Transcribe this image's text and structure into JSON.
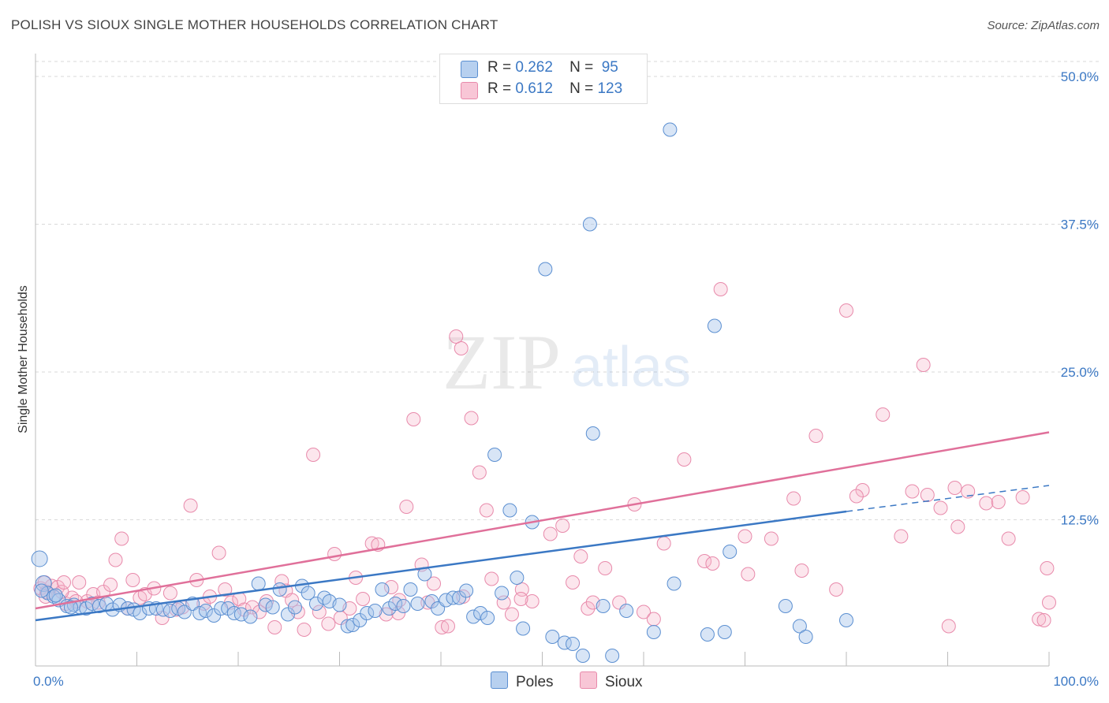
{
  "title": "POLISH VS SIOUX SINGLE MOTHER HOUSEHOLDS CORRELATION CHART",
  "source": "Source: ZipAtlas.com",
  "colors": {
    "blue": "#3b78c4",
    "blue_fill": "#a9c6ea",
    "pink": "#e0709a",
    "pink_fill": "#f5b7cb",
    "tick_text": "#3b78c4",
    "grid": "#d9d9d9"
  },
  "legend": {
    "r_label": "R =",
    "n_label": "N =",
    "poles": {
      "r": "0.262",
      "n": "95"
    },
    "sioux": {
      "r": "0.612",
      "n": "123"
    }
  },
  "chart_data": {
    "type": "scatter",
    "title": "POLISH VS SIOUX SINGLE MOTHER HOUSEHOLDS CORRELATION CHART",
    "xlabel": "",
    "ylabel": "Single Mother Households",
    "xlim": [
      0,
      100
    ],
    "ylim": [
      0,
      50
    ],
    "x_tick_labels": [
      "0.0%",
      "100.0%"
    ],
    "y_tick_labels": [
      "12.5%",
      "25.0%",
      "37.5%",
      "50.0%"
    ],
    "y_ticks": [
      12.5,
      25.0,
      37.5,
      50.0
    ],
    "grid": true,
    "watermark": "ZIPatlas",
    "series": [
      {
        "name": "Poles",
        "color": "#3b78c4",
        "trend": {
          "x0": 0,
          "y0": 4.0,
          "x1": 80,
          "y1": 13.2,
          "dash_to_x": 100,
          "dash_to_y": 15.4
        },
        "points": [
          [
            0.4,
            9.2
          ],
          [
            0.8,
            7.1
          ],
          [
            1.2,
            6.3
          ],
          [
            1.8,
            6.0
          ],
          [
            2.3,
            5.7
          ],
          [
            3.1,
            5.2
          ],
          [
            3.8,
            5.3
          ],
          [
            4.4,
            5.1
          ],
          [
            5.0,
            5.0
          ],
          [
            5.6,
            5.4
          ],
          [
            6.3,
            5.2
          ],
          [
            7.0,
            5.4
          ],
          [
            7.6,
            4.9
          ],
          [
            8.3,
            5.3
          ],
          [
            9.1,
            5.0
          ],
          [
            9.7,
            4.9
          ],
          [
            10.3,
            4.6
          ],
          [
            11.2,
            5.0
          ],
          [
            11.9,
            5.0
          ],
          [
            12.6,
            4.9
          ],
          [
            13.3,
            4.8
          ],
          [
            14.1,
            5.0
          ],
          [
            14.7,
            4.7
          ],
          [
            15.5,
            5.4
          ],
          [
            16.2,
            4.6
          ],
          [
            16.8,
            4.8
          ],
          [
            17.6,
            4.4
          ],
          [
            18.3,
            5.0
          ],
          [
            19.0,
            5.0
          ],
          [
            19.6,
            4.6
          ],
          [
            20.3,
            4.5
          ],
          [
            21.2,
            4.3
          ],
          [
            22.0,
            7.1
          ],
          [
            22.7,
            5.3
          ],
          [
            23.4,
            5.1
          ],
          [
            24.1,
            6.6
          ],
          [
            24.9,
            4.5
          ],
          [
            25.6,
            5.1
          ],
          [
            26.3,
            6.9
          ],
          [
            26.9,
            6.3
          ],
          [
            27.7,
            5.4
          ],
          [
            28.5,
            5.9
          ],
          [
            29.0,
            5.6
          ],
          [
            30.0,
            5.3
          ],
          [
            30.8,
            3.5
          ],
          [
            31.3,
            3.6
          ],
          [
            32.0,
            4.0
          ],
          [
            32.7,
            4.6
          ],
          [
            33.5,
            4.8
          ],
          [
            34.2,
            6.6
          ],
          [
            34.9,
            5.0
          ],
          [
            35.5,
            5.4
          ],
          [
            36.3,
            5.2
          ],
          [
            37.0,
            6.6
          ],
          [
            37.7,
            5.4
          ],
          [
            38.4,
            7.9
          ],
          [
            39.1,
            5.6
          ],
          [
            39.7,
            5.0
          ],
          [
            40.5,
            5.7
          ],
          [
            41.2,
            5.9
          ],
          [
            41.8,
            5.9
          ],
          [
            42.5,
            6.5
          ],
          [
            43.2,
            4.3
          ],
          [
            43.9,
            4.6
          ],
          [
            44.6,
            4.2
          ],
          [
            45.3,
            18.0
          ],
          [
            46.0,
            6.3
          ],
          [
            46.8,
            13.3
          ],
          [
            47.5,
            7.6
          ],
          [
            48.1,
            3.3
          ],
          [
            49.0,
            12.3
          ],
          [
            50.3,
            33.7
          ],
          [
            51.0,
            2.6
          ],
          [
            52.2,
            2.1
          ],
          [
            53.0,
            2.0
          ],
          [
            54.0,
            1.0
          ],
          [
            54.7,
            37.5
          ],
          [
            55.0,
            19.8
          ],
          [
            56.0,
            5.2
          ],
          [
            56.9,
            1.0
          ],
          [
            58.3,
            4.8
          ],
          [
            61.0,
            3.0
          ],
          [
            62.6,
            45.5
          ],
          [
            63.0,
            7.1
          ],
          [
            66.3,
            2.8
          ],
          [
            67.0,
            28.9
          ],
          [
            68.0,
            3.0
          ],
          [
            68.5,
            9.8
          ],
          [
            75.4,
            3.5
          ],
          [
            74.0,
            5.2
          ],
          [
            76.0,
            2.6
          ],
          [
            80.0,
            4.0
          ],
          [
            0.6,
            6.5
          ],
          [
            2.0,
            6.1
          ],
          [
            3.5,
            5.1
          ]
        ]
      },
      {
        "name": "Sioux",
        "color": "#e0709a",
        "trend": {
          "x0": 0,
          "y0": 5.0,
          "x1": 100,
          "y1": 19.9
        },
        "points": [
          [
            0.5,
            6.7
          ],
          [
            1.1,
            6.4
          ],
          [
            1.6,
            6.9
          ],
          [
            2.2,
            6.8
          ],
          [
            3.0,
            5.4
          ],
          [
            3.6,
            5.9
          ],
          [
            4.3,
            7.2
          ],
          [
            5.1,
            5.6
          ],
          [
            5.7,
            6.2
          ],
          [
            6.2,
            5.5
          ],
          [
            6.7,
            6.4
          ],
          [
            7.4,
            7.0
          ],
          [
            7.9,
            9.1
          ],
          [
            8.5,
            10.9
          ],
          [
            9.1,
            5.0
          ],
          [
            9.6,
            7.4
          ],
          [
            10.3,
            5.9
          ],
          [
            10.8,
            6.2
          ],
          [
            11.7,
            6.7
          ],
          [
            12.5,
            4.2
          ],
          [
            13.3,
            6.3
          ],
          [
            13.9,
            4.9
          ],
          [
            14.5,
            5.1
          ],
          [
            15.3,
            13.7
          ],
          [
            15.9,
            7.4
          ],
          [
            16.6,
            5.4
          ],
          [
            17.2,
            6.0
          ],
          [
            18.1,
            9.7
          ],
          [
            18.7,
            6.6
          ],
          [
            19.3,
            5.5
          ],
          [
            20.1,
            5.8
          ],
          [
            20.6,
            4.9
          ],
          [
            21.4,
            5.1
          ],
          [
            22.1,
            4.7
          ],
          [
            22.8,
            5.6
          ],
          [
            23.6,
            3.4
          ],
          [
            24.3,
            7.3
          ],
          [
            24.7,
            6.5
          ],
          [
            25.3,
            5.7
          ],
          [
            25.9,
            4.7
          ],
          [
            26.5,
            3.2
          ],
          [
            27.4,
            18.0
          ],
          [
            28.0,
            4.7
          ],
          [
            28.9,
            3.7
          ],
          [
            29.5,
            9.6
          ],
          [
            30.1,
            4.2
          ],
          [
            31.0,
            5.0
          ],
          [
            31.6,
            7.6
          ],
          [
            32.3,
            5.8
          ],
          [
            33.2,
            10.5
          ],
          [
            33.8,
            10.4
          ],
          [
            34.6,
            4.5
          ],
          [
            35.1,
            6.8
          ],
          [
            35.8,
            4.6
          ],
          [
            36.6,
            13.6
          ],
          [
            37.3,
            21.0
          ],
          [
            38.1,
            8.7
          ],
          [
            38.7,
            5.5
          ],
          [
            39.3,
            7.1
          ],
          [
            40.1,
            3.4
          ],
          [
            40.7,
            3.5
          ],
          [
            41.5,
            28.0
          ],
          [
            42.2,
            6.0
          ],
          [
            43.0,
            21.1
          ],
          [
            43.8,
            16.5
          ],
          [
            44.5,
            13.3
          ],
          [
            45.0,
            7.5
          ],
          [
            46.2,
            5.5
          ],
          [
            47.0,
            4.5
          ],
          [
            48.0,
            6.6
          ],
          [
            49.0,
            5.6
          ],
          [
            50.8,
            11.3
          ],
          [
            52.0,
            12.0
          ],
          [
            53.0,
            7.2
          ],
          [
            53.8,
            9.4
          ],
          [
            54.5,
            5.0
          ],
          [
            55.0,
            5.5
          ],
          [
            56.2,
            8.4
          ],
          [
            57.6,
            5.5
          ],
          [
            59.1,
            13.8
          ],
          [
            60.0,
            4.7
          ],
          [
            61.0,
            4.1
          ],
          [
            62.0,
            10.5
          ],
          [
            64.0,
            17.6
          ],
          [
            66.0,
            9.0
          ],
          [
            66.8,
            8.8
          ],
          [
            67.6,
            32.0
          ],
          [
            70.3,
            7.9
          ],
          [
            72.6,
            10.9
          ],
          [
            74.8,
            14.3
          ],
          [
            77.0,
            19.6
          ],
          [
            79.0,
            6.6
          ],
          [
            80.0,
            30.2
          ],
          [
            81.6,
            15.0
          ],
          [
            83.6,
            21.4
          ],
          [
            85.4,
            11.1
          ],
          [
            87.6,
            25.6
          ],
          [
            90.7,
            15.2
          ],
          [
            92.0,
            14.9
          ],
          [
            93.8,
            13.9
          ],
          [
            95.0,
            14.0
          ],
          [
            97.4,
            14.4
          ],
          [
            99.0,
            4.1
          ],
          [
            100.0,
            5.5
          ],
          [
            86.5,
            14.9
          ],
          [
            88.0,
            14.6
          ],
          [
            89.3,
            13.5
          ],
          [
            90.1,
            3.5
          ],
          [
            91.0,
            11.9
          ],
          [
            96.0,
            10.9
          ],
          [
            99.8,
            8.4
          ],
          [
            1.0,
            6.0
          ],
          [
            2.6,
            6.4
          ],
          [
            35.9,
            5.7
          ],
          [
            47.9,
            5.8
          ],
          [
            70.0,
            11.1
          ],
          [
            75.6,
            8.2
          ],
          [
            81.0,
            14.5
          ],
          [
            42.0,
            27.0
          ],
          [
            0.9,
            7.2
          ],
          [
            99.5,
            4.0
          ],
          [
            2.8,
            7.2
          ],
          [
            4.0,
            5.6
          ]
        ]
      }
    ]
  }
}
